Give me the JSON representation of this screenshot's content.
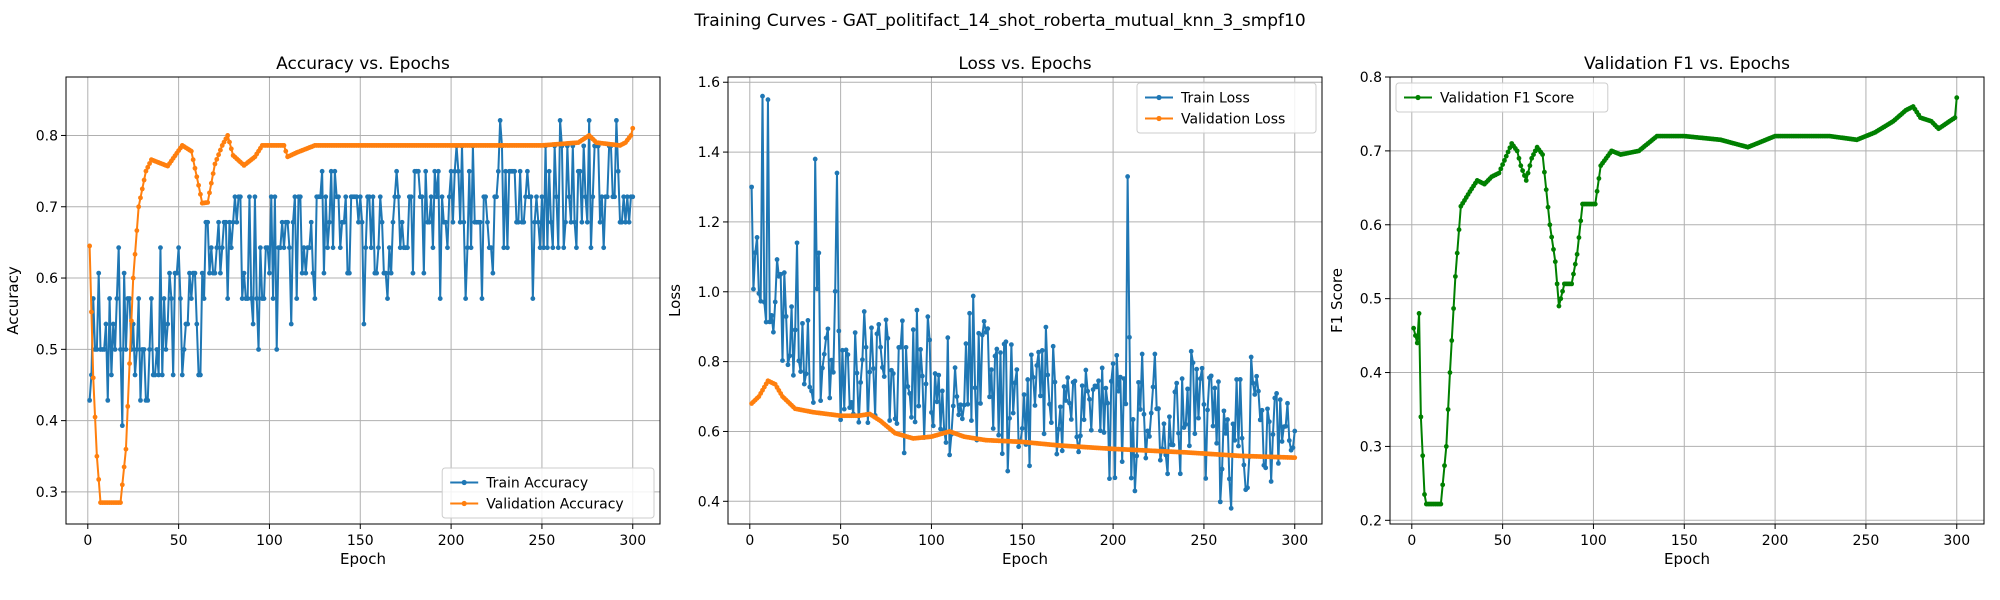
{
  "figure": {
    "suptitle": "Training Curves - GAT_politifact_14_shot_roberta_mutual_knn_3_smpf10"
  },
  "colors": {
    "train": "#1f77b4",
    "validation": "#ff7f0e",
    "f1": "#008000",
    "grid": "#b0b0b0"
  },
  "chart_data": [
    {
      "type": "line",
      "title": "Accuracy vs. Epochs",
      "xlabel": "Epoch",
      "ylabel": "Accuracy",
      "xlim": [
        -12,
        315
      ],
      "ylim": [
        0.255,
        0.882
      ],
      "xticks": [
        0,
        50,
        100,
        150,
        200,
        250,
        300
      ],
      "yticks": [
        0.3,
        0.4,
        0.5,
        0.6,
        0.7,
        0.8
      ],
      "grid": true,
      "legend_position": "lower-right",
      "series": [
        {
          "name": "Train Accuracy",
          "color": "#1f77b4",
          "marker": "dot",
          "generator": "noisy",
          "seed": 11,
          "keypoints": [
            [
              1,
              0.46
            ],
            [
              3,
              0.54
            ],
            [
              5,
              0.6
            ],
            [
              8,
              0.5
            ],
            [
              20,
              0.52
            ],
            [
              40,
              0.52
            ],
            [
              60,
              0.56
            ],
            [
              70,
              0.64
            ],
            [
              100,
              0.63
            ],
            [
              150,
              0.66
            ],
            [
              200,
              0.69
            ],
            [
              250,
              0.7
            ],
            [
              300,
              0.72
            ]
          ],
          "noise": 0.085,
          "step": 0.0357,
          "ymin": 0.393,
          "ymax": 0.857
        },
        {
          "name": "Validation Accuracy",
          "color": "#ff7f0e",
          "marker": "dot",
          "generator": "smooth",
          "keypoints": [
            [
              1,
              0.645
            ],
            [
              3,
              0.46
            ],
            [
              5,
              0.35
            ],
            [
              7,
              0.285
            ],
            [
              18,
              0.285
            ],
            [
              21,
              0.36
            ],
            [
              25,
              0.6
            ],
            [
              28,
              0.7
            ],
            [
              32,
              0.75
            ],
            [
              35,
              0.766
            ],
            [
              44,
              0.757
            ],
            [
              52,
              0.786
            ],
            [
              57,
              0.778
            ],
            [
              61,
              0.73
            ],
            [
              63,
              0.705
            ],
            [
              66,
              0.706
            ],
            [
              70,
              0.76
            ],
            [
              74,
              0.786
            ],
            [
              77,
              0.8
            ],
            [
              80,
              0.772
            ],
            [
              86,
              0.758
            ],
            [
              92,
              0.77
            ],
            [
              96,
              0.786
            ],
            [
              108,
              0.786
            ],
            [
              110,
              0.77
            ],
            [
              115,
              0.776
            ],
            [
              125,
              0.786
            ],
            [
              250,
              0.786
            ],
            [
              270,
              0.79
            ],
            [
              276,
              0.8
            ],
            [
              280,
              0.79
            ],
            [
              293,
              0.786
            ],
            [
              296,
              0.79
            ],
            [
              299,
              0.8
            ],
            [
              300,
              0.81
            ]
          ]
        }
      ]
    },
    {
      "type": "line",
      "title": "Loss vs. Epochs",
      "xlabel": "Epoch",
      "ylabel": "Loss",
      "xlim": [
        -12,
        315
      ],
      "ylim": [
        0.335,
        1.615
      ],
      "xticks": [
        0,
        50,
        100,
        150,
        200,
        250,
        300
      ],
      "yticks": [
        0.4,
        0.6,
        0.8,
        1.0,
        1.2,
        1.4,
        1.6
      ],
      "grid": true,
      "legend_position": "upper-right",
      "series": [
        {
          "name": "Train Loss",
          "color": "#1f77b4",
          "marker": "dot",
          "generator": "noisy",
          "seed": 23,
          "keypoints": [
            [
              1,
              1.1
            ],
            [
              10,
              1.05
            ],
            [
              20,
              0.92
            ],
            [
              40,
              0.85
            ],
            [
              60,
              0.8
            ],
            [
              100,
              0.76
            ],
            [
              150,
              0.72
            ],
            [
              200,
              0.68
            ],
            [
              250,
              0.62
            ],
            [
              300,
              0.58
            ]
          ],
          "noise": 0.17,
          "ymin": 0.38,
          "ymax": 1.56,
          "spikes": [
            [
              1,
              1.3
            ],
            [
              7,
              1.56
            ],
            [
              10,
              1.55
            ],
            [
              36,
              1.38
            ],
            [
              48,
              1.34
            ],
            [
              208,
              1.33
            ]
          ]
        },
        {
          "name": "Validation Loss",
          "color": "#ff7f0e",
          "marker": "dot",
          "generator": "smooth",
          "keypoints": [
            [
              1,
              0.68
            ],
            [
              5,
              0.7
            ],
            [
              10,
              0.745
            ],
            [
              14,
              0.735
            ],
            [
              18,
              0.7
            ],
            [
              25,
              0.665
            ],
            [
              35,
              0.655
            ],
            [
              50,
              0.645
            ],
            [
              60,
              0.645
            ],
            [
              66,
              0.65
            ],
            [
              72,
              0.63
            ],
            [
              80,
              0.595
            ],
            [
              90,
              0.58
            ],
            [
              100,
              0.585
            ],
            [
              110,
              0.6
            ],
            [
              118,
              0.585
            ],
            [
              130,
              0.575
            ],
            [
              150,
              0.57
            ],
            [
              170,
              0.56
            ],
            [
              200,
              0.55
            ],
            [
              240,
              0.54
            ],
            [
              270,
              0.53
            ],
            [
              300,
              0.525
            ]
          ]
        }
      ]
    },
    {
      "type": "line",
      "title": "Validation F1 vs. Epochs",
      "xlabel": "Epoch",
      "ylabel": "F1 Score",
      "xlim": [
        -12,
        315
      ],
      "ylim": [
        0.195,
        0.8
      ],
      "xticks": [
        0,
        50,
        100,
        150,
        200,
        250,
        300
      ],
      "yticks": [
        0.2,
        0.3,
        0.4,
        0.5,
        0.6,
        0.7,
        0.8
      ],
      "grid": true,
      "legend_position": "upper-left",
      "series": [
        {
          "name": "Validation F1 Score",
          "color": "#008000",
          "marker": "dot",
          "generator": "smooth",
          "keypoints": [
            [
              1,
              0.46
            ],
            [
              3,
              0.44
            ],
            [
              4,
              0.48
            ],
            [
              5,
              0.34
            ],
            [
              7,
              0.235
            ],
            [
              8,
              0.222
            ],
            [
              16,
              0.222
            ],
            [
              19,
              0.3
            ],
            [
              21,
              0.4
            ],
            [
              24,
              0.53
            ],
            [
              27,
              0.625
            ],
            [
              32,
              0.645
            ],
            [
              36,
              0.66
            ],
            [
              40,
              0.655
            ],
            [
              44,
              0.665
            ],
            [
              48,
              0.67
            ],
            [
              55,
              0.71
            ],
            [
              58,
              0.7
            ],
            [
              60,
              0.68
            ],
            [
              63,
              0.66
            ],
            [
              66,
              0.69
            ],
            [
              69,
              0.705
            ],
            [
              72,
              0.695
            ],
            [
              76,
              0.6
            ],
            [
              79,
              0.55
            ],
            [
              81,
              0.49
            ],
            [
              84,
              0.52
            ],
            [
              88,
              0.52
            ],
            [
              91,
              0.56
            ],
            [
              94,
              0.628
            ],
            [
              101,
              0.628
            ],
            [
              104,
              0.68
            ],
            [
              110,
              0.7
            ],
            [
              115,
              0.695
            ],
            [
              125,
              0.7
            ],
            [
              135,
              0.72
            ],
            [
              150,
              0.72
            ],
            [
              170,
              0.715
            ],
            [
              185,
              0.705
            ],
            [
              200,
              0.72
            ],
            [
              215,
              0.72
            ],
            [
              230,
              0.72
            ],
            [
              245,
              0.715
            ],
            [
              255,
              0.725
            ],
            [
              265,
              0.74
            ],
            [
              272,
              0.755
            ],
            [
              276,
              0.76
            ],
            [
              280,
              0.745
            ],
            [
              286,
              0.74
            ],
            [
              290,
              0.73
            ],
            [
              296,
              0.74
            ],
            [
              299,
              0.745
            ],
            [
              300,
              0.772
            ]
          ]
        }
      ]
    }
  ]
}
